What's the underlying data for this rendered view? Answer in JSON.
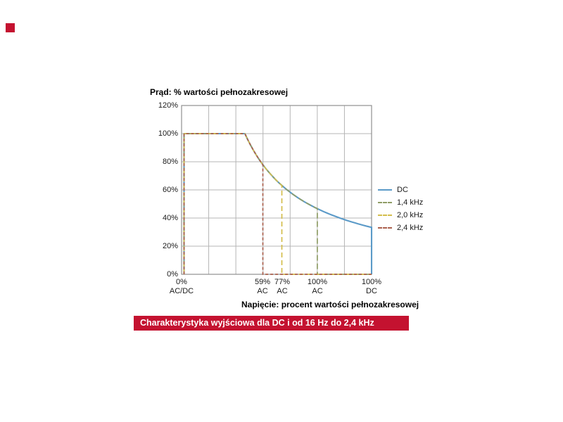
{
  "accent_red": "#c41230",
  "chart": {
    "title": "Prąd: % wartości pełnozakresowej",
    "x_axis_title": "Napięcie: procent wartości pełnozakresowej",
    "y_ticks": [
      "120%",
      "100%",
      "80%",
      "60%",
      "40%",
      "20%",
      "0%"
    ],
    "x_ticks": [
      {
        "line1": "0%",
        "line2": "AC/DC",
        "pos": "0"
      },
      {
        "line1": "59%",
        "line2": "AC",
        "pos": "59"
      },
      {
        "line1": "77%",
        "line2": "AC",
        "pos": "77"
      },
      {
        "line1": "100%",
        "line2": "AC",
        "pos": "100ac"
      },
      {
        "line1": "100%",
        "line2": "DC",
        "pos": "100dc"
      }
    ],
    "legend": [
      {
        "label": "DC",
        "color": "#5b9ac8",
        "dash": "",
        "cutoff": "100dc"
      },
      {
        "label": "1,4 kHz",
        "color": "#8f9d66",
        "dash": "8 4",
        "cutoff": "100ac"
      },
      {
        "label": "2,0 kHz",
        "color": "#d3bd4b",
        "dash": "7 4",
        "cutoff": "77"
      },
      {
        "label": "2,4 kHz",
        "color": "#ab5f4c",
        "dash": "4 3",
        "cutoff": "59"
      }
    ],
    "grid_color": "#b5b5b5",
    "border_color": "#8f8f8f"
  },
  "caption": {
    "text": "Charakterystyka wyjściowa dla DC i od 16 Hz do 2,4 kHz",
    "background": "#c41230",
    "color": "#ffffff"
  },
  "chart_data": {
    "type": "line",
    "title": "Prąd: % wartości pełnozakresowej",
    "xlabel": "Napięcie: procent wartości pełnozakresowej",
    "ylabel": "Prąd: % wartości pełnozakresowej",
    "ylim": [
      0,
      120
    ],
    "y_tick_values": [
      0,
      20,
      40,
      60,
      80,
      100,
      120
    ],
    "x_tick_labels": [
      "0% AC/DC",
      "59% AC",
      "77% AC",
      "100% AC",
      "100% DC"
    ],
    "grid": true,
    "legend_position": "right-outside",
    "description": "Current derating vs output voltage: all curves rise to 100% at 0% voltage, stay flat to the knee (~47% of AC range), then follow a shared hyperbolic derating curve; each frequency curve drops vertically to 0% at its voltage limit and runs along 0% afterwards.",
    "series": [
      {
        "name": "DC",
        "style": "solid",
        "points": [
          [
            "0% AC/DC",
            0
          ],
          [
            "0% AC/DC",
            100
          ],
          [
            "47%",
            100
          ],
          [
            "59%",
            79
          ],
          [
            "77%",
            63
          ],
          [
            "100% AC",
            47
          ],
          [
            "100% DC",
            33
          ],
          [
            "100% DC",
            0
          ]
        ]
      },
      {
        "name": "1,4 kHz",
        "style": "dashed",
        "voltage_limit": "100% AC",
        "points": [
          [
            "0% AC/DC",
            0
          ],
          [
            "0% AC/DC",
            100
          ],
          [
            "47%",
            100
          ],
          [
            "59%",
            79
          ],
          [
            "77%",
            63
          ],
          [
            "100% AC",
            47
          ],
          [
            "100% AC",
            0
          ],
          [
            "100% DC",
            0
          ]
        ]
      },
      {
        "name": "2,0 kHz",
        "style": "dashed",
        "voltage_limit": "77% AC",
        "points": [
          [
            "0% AC/DC",
            0
          ],
          [
            "0% AC/DC",
            100
          ],
          [
            "47%",
            100
          ],
          [
            "59%",
            79
          ],
          [
            "77%",
            63
          ],
          [
            "77% AC",
            0
          ],
          [
            "100% DC",
            0
          ]
        ]
      },
      {
        "name": "2,4 kHz",
        "style": "dashed",
        "voltage_limit": "59% AC",
        "points": [
          [
            "0% AC/DC",
            0
          ],
          [
            "0% AC/DC",
            100
          ],
          [
            "47%",
            100
          ],
          [
            "59%",
            79
          ],
          [
            "59% AC",
            0
          ],
          [
            "100% DC",
            0
          ]
        ]
      }
    ]
  }
}
